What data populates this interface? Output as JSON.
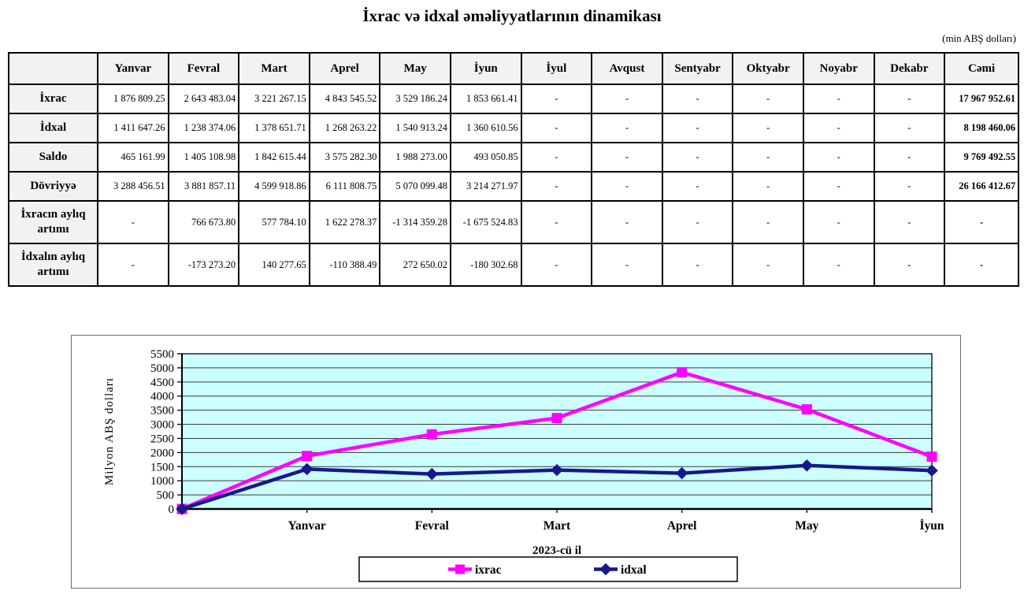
{
  "page": {
    "title": "İxrac və idxal əməliyyatlarının dinamikası",
    "unit_note": "(min ABŞ dolları)"
  },
  "table": {
    "corner_label": "",
    "columns": [
      "Yanvar",
      "Fevral",
      "Mart",
      "Aprel",
      "May",
      "İyun",
      "İyul",
      "Avqust",
      "Sentyabr",
      "Oktyabr",
      "Noyabr",
      "Dekabr",
      "Cəmi"
    ],
    "rows": [
      {
        "label": "İxrac",
        "values": [
          "1 876 809.25",
          "2 643 483.04",
          "3 221 267.15",
          "4 843 545.52",
          "3 529 186.24",
          "1 853 661.41",
          "-",
          "-",
          "-",
          "-",
          "-",
          "-",
          "17 967 952.61"
        ]
      },
      {
        "label": "İdxal",
        "values": [
          "1 411 647.26",
          "1 238 374.06",
          "1 378 651.71",
          "1 268 263.22",
          "1 540 913.24",
          "1 360 610.56",
          "-",
          "-",
          "-",
          "-",
          "-",
          "-",
          "8 198 460.06"
        ]
      },
      {
        "label": "Saldo",
        "values": [
          "465 161.99",
          "1 405 108.98",
          "1 842 615.44",
          "3 575 282.30",
          "1 988 273.00",
          "493 050.85",
          "-",
          "-",
          "-",
          "-",
          "-",
          "-",
          "9 769 492.55"
        ]
      },
      {
        "label": "Dövriyyə",
        "values": [
          "3 288 456.51",
          "3 881 857.11",
          "4 599 918.86",
          "6 111 808.75",
          "5 070 099.48",
          "3 214 271.97",
          "-",
          "-",
          "-",
          "-",
          "-",
          "-",
          "26 166 412.67"
        ]
      },
      {
        "label": "İxracın aylıq artımı",
        "values": [
          "-",
          "766 673.80",
          "577 784.10",
          "1 622 278.37",
          "-1 314 359.28",
          "-1 675 524.83",
          "-",
          "-",
          "-",
          "-",
          "-",
          "-",
          "-"
        ]
      },
      {
        "label": "İdxalın aylıq artımı",
        "values": [
          "-",
          "-173 273.20",
          "140 277.65",
          "-110 388.49",
          "272 650.02",
          "-180 302.68",
          "-",
          "-",
          "-",
          "-",
          "-",
          "-",
          "-"
        ]
      }
    ]
  },
  "chart_data": {
    "type": "line",
    "x_categories": [
      "",
      "Yanvar",
      "Fevral",
      "Mart",
      "Aprel",
      "May",
      "İyun"
    ],
    "series": [
      {
        "name": "ixrac",
        "color": "#FF00FF",
        "marker": "square",
        "values": [
          0,
          1876.81,
          2643.48,
          3221.27,
          4843.55,
          3529.19,
          1853.66
        ]
      },
      {
        "name": "idxal",
        "color": "#18188C",
        "marker": "diamond",
        "values": [
          0,
          1411.65,
          1238.37,
          1378.65,
          1268.26,
          1540.91,
          1360.61
        ]
      }
    ],
    "ylabel": "Milyon ABŞ dolları",
    "xlabel": "2023-cü il",
    "ylim": [
      0,
      5500
    ],
    "ytick_step": 500,
    "plot_bg": "#CCFFFF",
    "grid": true,
    "legend_position": "bottom"
  }
}
